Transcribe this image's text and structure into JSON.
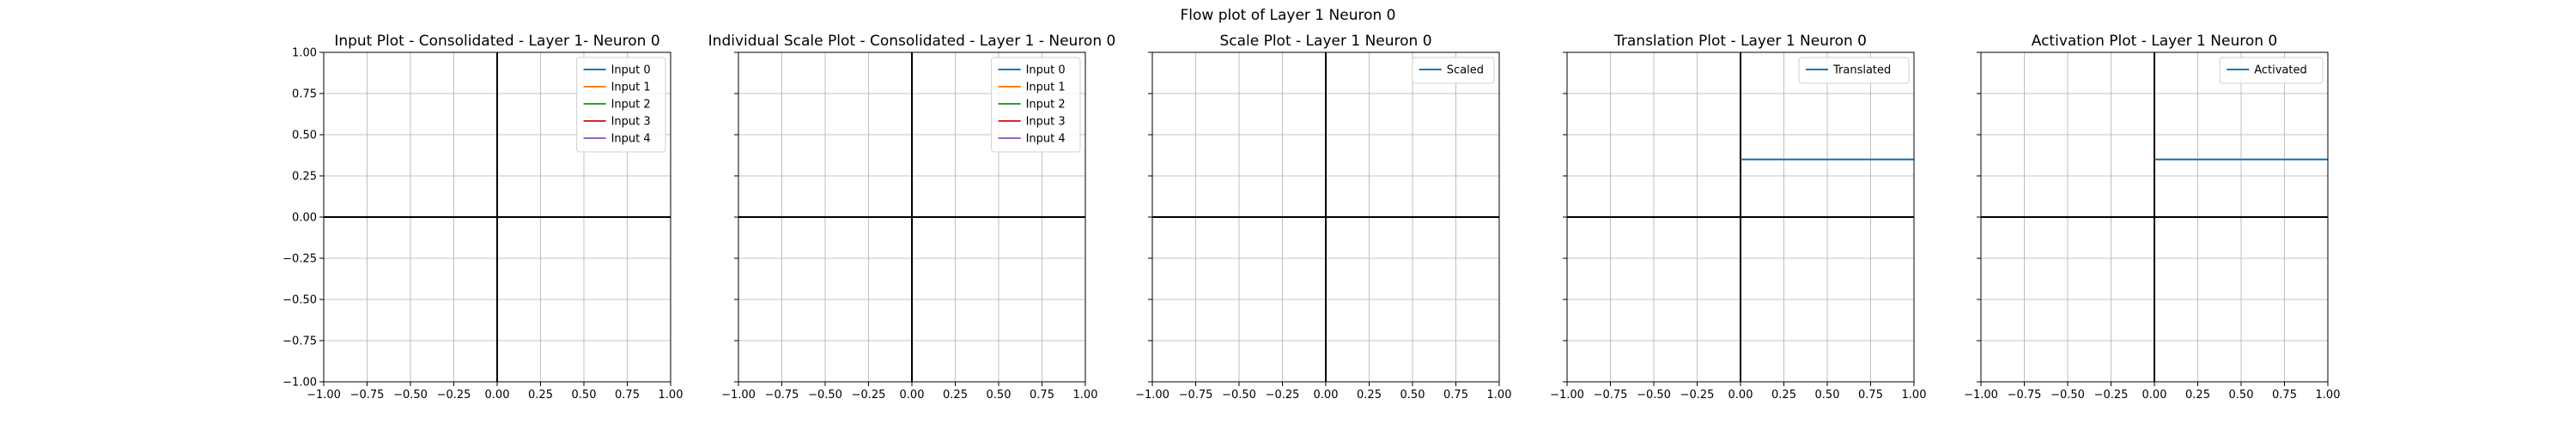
{
  "suptitle": "Flow plot of Layer 1 Neuron 0",
  "chart_data": [
    {
      "type": "line",
      "title": "Input Plot - Consolidated - Layer 1- Neuron 0",
      "xlim": [
        -1,
        1
      ],
      "ylim": [
        -1,
        1
      ],
      "xticks": [
        -1.0,
        -0.75,
        -0.5,
        -0.25,
        0.0,
        0.25,
        0.5,
        0.75,
        1.0
      ],
      "yticks": [
        -1.0,
        -0.75,
        -0.5,
        -0.25,
        0.0,
        0.25,
        0.5,
        0.75,
        1.0
      ],
      "xtick_labels": [
        "−1.00",
        "−0.75",
        "−0.50",
        "−0.25",
        "0.00",
        "0.25",
        "0.50",
        "0.75",
        "1.00"
      ],
      "ytick_labels": [
        "−1.00",
        "−0.75",
        "−0.50",
        "−0.25",
        "0.00",
        "0.25",
        "0.50",
        "0.75",
        "1.00"
      ],
      "show_ytick_labels": true,
      "grid": true,
      "legend_loc": "upper-right",
      "series": [
        {
          "name": "Input 0",
          "color": "#1f77b4",
          "x": [],
          "y": []
        },
        {
          "name": "Input 1",
          "color": "#ff7f0e",
          "x": [],
          "y": []
        },
        {
          "name": "Input 2",
          "color": "#2ca02c",
          "x": [],
          "y": []
        },
        {
          "name": "Input 3",
          "color": "#d62728",
          "x": [],
          "y": []
        },
        {
          "name": "Input 4",
          "color": "#9467bd",
          "x": [],
          "y": []
        }
      ]
    },
    {
      "type": "line",
      "title": "Individual Scale Plot - Consolidated - Layer 1 - Neuron 0",
      "xlim": [
        -1,
        1
      ],
      "ylim": [
        -1,
        1
      ],
      "xticks": [
        -1.0,
        -0.75,
        -0.5,
        -0.25,
        0.0,
        0.25,
        0.5,
        0.75,
        1.0
      ],
      "yticks": [
        -1.0,
        -0.75,
        -0.5,
        -0.25,
        0.0,
        0.25,
        0.5,
        0.75,
        1.0
      ],
      "xtick_labels": [
        "−1.00",
        "−0.75",
        "−0.50",
        "−0.25",
        "0.00",
        "0.25",
        "0.50",
        "0.75",
        "1.00"
      ],
      "ytick_labels": [],
      "show_ytick_labels": false,
      "grid": true,
      "legend_loc": "upper-right",
      "series": [
        {
          "name": "Input 0",
          "color": "#1f77b4",
          "x": [],
          "y": []
        },
        {
          "name": "Input 1",
          "color": "#ff7f0e",
          "x": [],
          "y": []
        },
        {
          "name": "Input 2",
          "color": "#2ca02c",
          "x": [],
          "y": []
        },
        {
          "name": "Input 3",
          "color": "#d62728",
          "x": [],
          "y": []
        },
        {
          "name": "Input 4",
          "color": "#9467bd",
          "x": [],
          "y": []
        }
      ]
    },
    {
      "type": "line",
      "title": "Scale Plot - Layer 1 Neuron 0",
      "xlim": [
        -1,
        1
      ],
      "ylim": [
        -1,
        1
      ],
      "xticks": [
        -1.0,
        -0.75,
        -0.5,
        -0.25,
        0.0,
        0.25,
        0.5,
        0.75,
        1.0
      ],
      "yticks": [
        -1.0,
        -0.75,
        -0.5,
        -0.25,
        0.0,
        0.25,
        0.5,
        0.75,
        1.0
      ],
      "xtick_labels": [
        "−1.00",
        "−0.75",
        "−0.50",
        "−0.25",
        "0.00",
        "0.25",
        "0.50",
        "0.75",
        "1.00"
      ],
      "ytick_labels": [],
      "show_ytick_labels": false,
      "grid": true,
      "legend_loc": "upper-right",
      "series": [
        {
          "name": "Scaled",
          "color": "#1f77b4",
          "x": [],
          "y": []
        }
      ]
    },
    {
      "type": "line",
      "title": "Translation Plot - Layer 1 Neuron 0",
      "xlim": [
        -1,
        1
      ],
      "ylim": [
        -1,
        1
      ],
      "xticks": [
        -1.0,
        -0.75,
        -0.5,
        -0.25,
        0.0,
        0.25,
        0.5,
        0.75,
        1.0
      ],
      "yticks": [
        -1.0,
        -0.75,
        -0.5,
        -0.25,
        0.0,
        0.25,
        0.5,
        0.75,
        1.0
      ],
      "xtick_labels": [
        "−1.00",
        "−0.75",
        "−0.50",
        "−0.25",
        "0.00",
        "0.25",
        "0.50",
        "0.75",
        "1.00"
      ],
      "ytick_labels": [],
      "show_ytick_labels": false,
      "grid": true,
      "legend_loc": "upper-right",
      "series": [
        {
          "name": "Translated",
          "color": "#1f77b4",
          "x": [
            0.0,
            1.0
          ],
          "y": [
            0.35,
            0.35
          ]
        }
      ]
    },
    {
      "type": "line",
      "title": "Activation Plot - Layer 1 Neuron 0",
      "xlim": [
        -1,
        1
      ],
      "ylim": [
        -1,
        1
      ],
      "xticks": [
        -1.0,
        -0.75,
        -0.5,
        -0.25,
        0.0,
        0.25,
        0.5,
        0.75,
        1.0
      ],
      "yticks": [
        -1.0,
        -0.75,
        -0.5,
        -0.25,
        0.0,
        0.25,
        0.5,
        0.75,
        1.0
      ],
      "xtick_labels": [
        "−1.00",
        "−0.75",
        "−0.50",
        "−0.25",
        "0.00",
        "0.25",
        "0.50",
        "0.75",
        "1.00"
      ],
      "ytick_labels": [],
      "show_ytick_labels": false,
      "grid": true,
      "legend_loc": "upper-right",
      "series": [
        {
          "name": "Activated",
          "color": "#1f77b4",
          "x": [
            0.0,
            1.0
          ],
          "y": [
            0.35,
            0.35
          ]
        }
      ]
    }
  ]
}
